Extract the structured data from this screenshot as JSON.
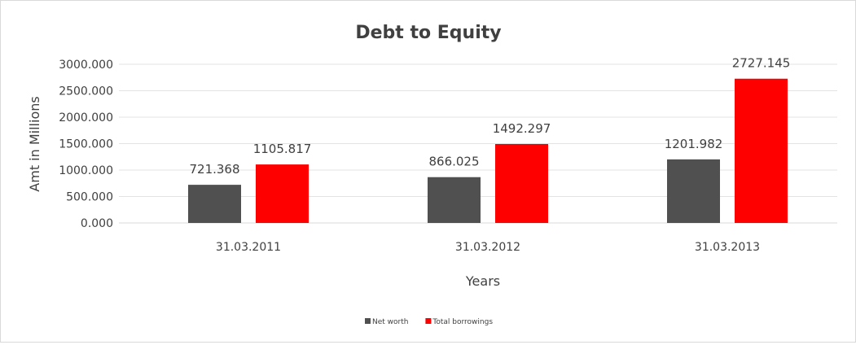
{
  "chart_data": {
    "type": "bar",
    "title": "Debt to Equity",
    "xlabel": "Years",
    "ylabel": "Amt in Millions",
    "categories": [
      "31.03.2011",
      "31.03.2012",
      "31.03.2013"
    ],
    "series": [
      {
        "name": "Net worth",
        "values": [
          721.368,
          866.025,
          1201.982
        ],
        "color": "#505050",
        "labels": [
          "721.368",
          "866.025",
          "1201.982"
        ]
      },
      {
        "name": "Total borrowings",
        "values": [
          1105.817,
          1492.297,
          2727.145
        ],
        "color": "#ff0000",
        "labels": [
          "1105.817",
          "1492.297",
          "2727.145"
        ]
      }
    ],
    "ylim": [
      0,
      3000
    ],
    "yticks": [
      "0.000",
      "500.000",
      "1000.000",
      "1500.000",
      "2000.000",
      "2500.000",
      "3000.000"
    ],
    "grid": true,
    "legend": "bottom"
  }
}
